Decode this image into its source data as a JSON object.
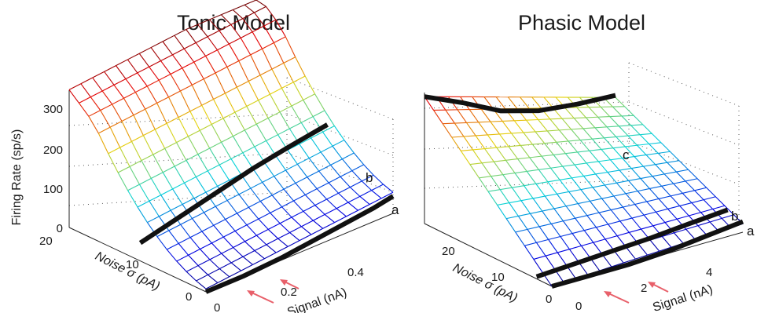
{
  "chart_data": [
    {
      "type": "surface",
      "title": "Tonic Model",
      "zlabel": "Firing Rate (sp/s)",
      "xlabel": "Signal (nA)",
      "ylabel": "Noise σ (pA)",
      "z_ticks": [
        "0",
        "100",
        "200",
        "300"
      ],
      "x_ticks": [
        "0",
        "0.2",
        "0.4"
      ],
      "y_ticks": [
        "0",
        "10",
        "20"
      ],
      "xlim": [
        0,
        0.5
      ],
      "ylim": [
        0,
        25
      ],
      "zlim": [
        0,
        330
      ],
      "grid": true,
      "curves": [
        {
          "label": "a",
          "noise": 0,
          "signal": [
            0,
            0.1,
            0.2,
            0.3,
            0.4,
            0.45,
            0.5
          ],
          "rate": [
            0,
            0,
            5,
            15,
            25,
            30,
            38
          ]
        },
        {
          "label": "b",
          "noise": 12,
          "signal": [
            0,
            0.1,
            0.2,
            0.3,
            0.4,
            0.5
          ],
          "rate": [
            40,
            60,
            80,
            100,
            115,
            128
          ]
        }
      ],
      "annotations": [
        "a",
        "b"
      ]
    },
    {
      "type": "surface",
      "title": "Phasic Model",
      "xlabel": "Signal (nA)",
      "ylabel": "Noise σ (pA)",
      "x_ticks": [
        "0",
        "2",
        "4"
      ],
      "y_ticks": [
        "0",
        "10",
        "20"
      ],
      "xlim": [
        0,
        5
      ],
      "ylim": [
        0,
        25
      ],
      "zlim": [
        0,
        330
      ],
      "grid": true,
      "curves": [
        {
          "label": "a",
          "noise": 0,
          "signal": [
            0,
            1,
            2,
            3,
            4,
            5
          ],
          "rate": [
            0,
            0,
            0,
            5,
            15,
            25
          ]
        },
        {
          "label": "b",
          "noise": 3,
          "signal": [
            0,
            1,
            2,
            3,
            4,
            5
          ],
          "rate": [
            5,
            10,
            15,
            20,
            28,
            35
          ]
        },
        {
          "label": "c",
          "noise": 25,
          "signal": [
            0,
            1,
            2,
            3,
            4,
            5
          ],
          "rate": [
            300,
            260,
            215,
            190,
            180,
            175
          ]
        }
      ],
      "annotations": [
        "a",
        "b",
        "c"
      ]
    }
  ]
}
